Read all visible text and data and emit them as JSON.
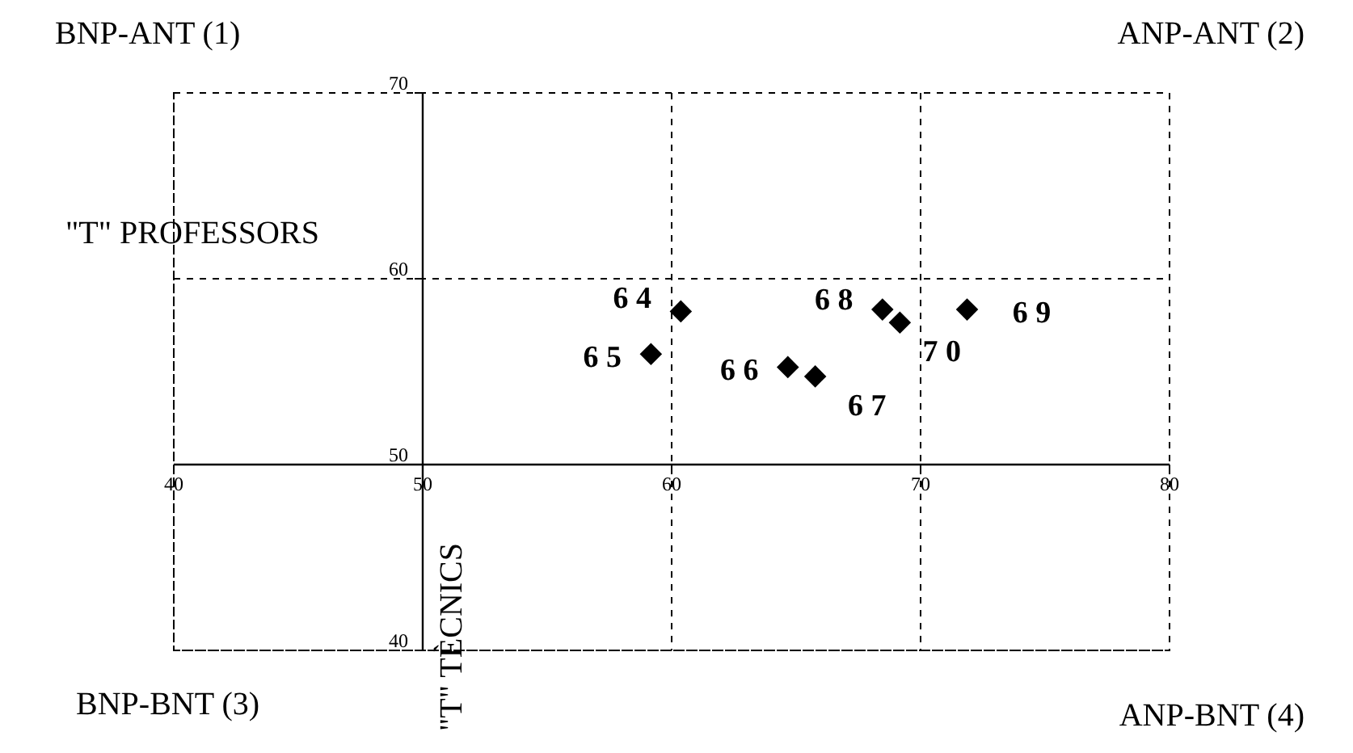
{
  "chart_data": {
    "type": "scatter",
    "xlabel": "\"T\" PROFESSORS",
    "ylabel": "\"T\" TÈCNICS",
    "x": [
      60.4,
      59.2,
      64.7,
      65.8,
      68.5,
      71.9,
      69.2
    ],
    "series": [
      {
        "color": "#000000",
        "values": [
          58.2,
          55.9,
          55.2,
          54.7,
          58.3,
          58.3,
          57.6
        ]
      }
    ],
    "marker": "diamond",
    "xlim": [
      40,
      80
    ],
    "xticks": [
      40,
      50,
      60,
      70,
      80
    ],
    "ylim": [
      40,
      70
    ],
    "yticks": [
      40,
      50,
      60,
      70
    ],
    "grid": true,
    "legend": false,
    "annotations": [
      "BNP-ANT (1)",
      "ANP-ANT (2)",
      "BNP-BNT (3)",
      "ANP-BNT (4)",
      {
        "text": "6 4",
        "x": 60.4,
        "y": 58.2
      },
      {
        "text": "6 5",
        "x": 59.2,
        "y": 55.9
      },
      {
        "text": "6 6",
        "x": 64.7,
        "y": 55.2
      },
      {
        "text": "6 7",
        "x": 65.8,
        "y": 54.7
      },
      {
        "text": "6 8",
        "x": 68.5,
        "y": 58.3
      },
      {
        "text": "6 9",
        "x": 71.9,
        "y": 58.3
      },
      {
        "text": "7 0",
        "x": 69.2,
        "y": 57.6
      }
    ]
  }
}
